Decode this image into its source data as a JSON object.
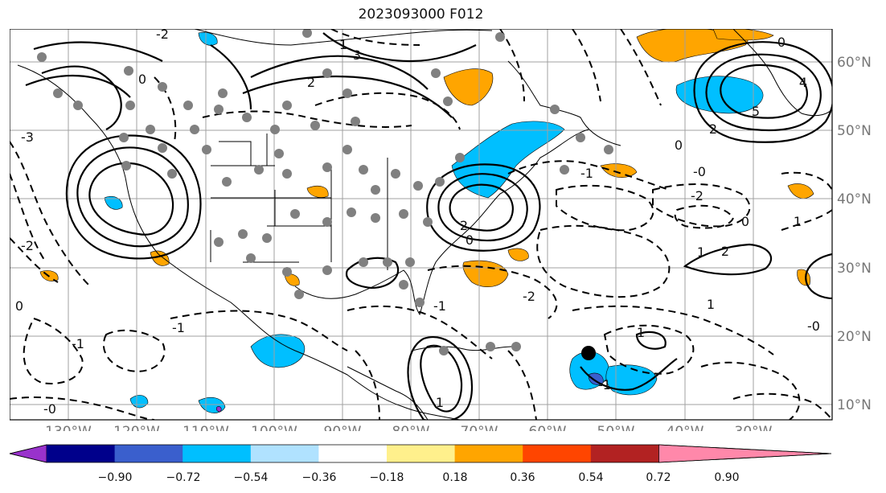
{
  "title": "2023093000 F012",
  "map": {
    "lon_labels": [
      "130°W",
      "120°W",
      "110°W",
      "100°W",
      "90°W",
      "80°W",
      "70°W",
      "60°W",
      "50°W",
      "40°W",
      "30°W"
    ],
    "lat_labels": [
      "60°N",
      "50°N",
      "40°N",
      "30°N",
      "20°N",
      "10°N"
    ],
    "contour_labels": [
      "-2",
      "3",
      "2",
      "0",
      "1",
      "4",
      "5",
      "2",
      "0",
      "-3",
      "-1",
      "0",
      "-2",
      "1",
      "-1",
      "-2",
      "2",
      "-1",
      "0",
      "-0",
      "-2",
      "0",
      "1",
      "2",
      "1",
      "-0",
      "-1",
      "1",
      "0",
      "-1",
      "-0",
      "1"
    ],
    "colors": {
      "land_outline": "#000000",
      "grid": "#a0a0a0",
      "station_dot": "#808080",
      "marker": "#000000"
    }
  },
  "colorbar": {
    "ticks": [
      "−0.90",
      "−0.72",
      "−0.54",
      "−0.36",
      "−0.18",
      "0.18",
      "0.36",
      "0.54",
      "0.72",
      "0.90"
    ],
    "colors": [
      "#9932cc",
      "#00008b",
      "#3a5fcd",
      "#00bfff",
      "#b0e2ff",
      "#ffffff",
      "#fff08c",
      "#ffa500",
      "#ff4500",
      "#b22222",
      "#ff88aa"
    ]
  }
}
